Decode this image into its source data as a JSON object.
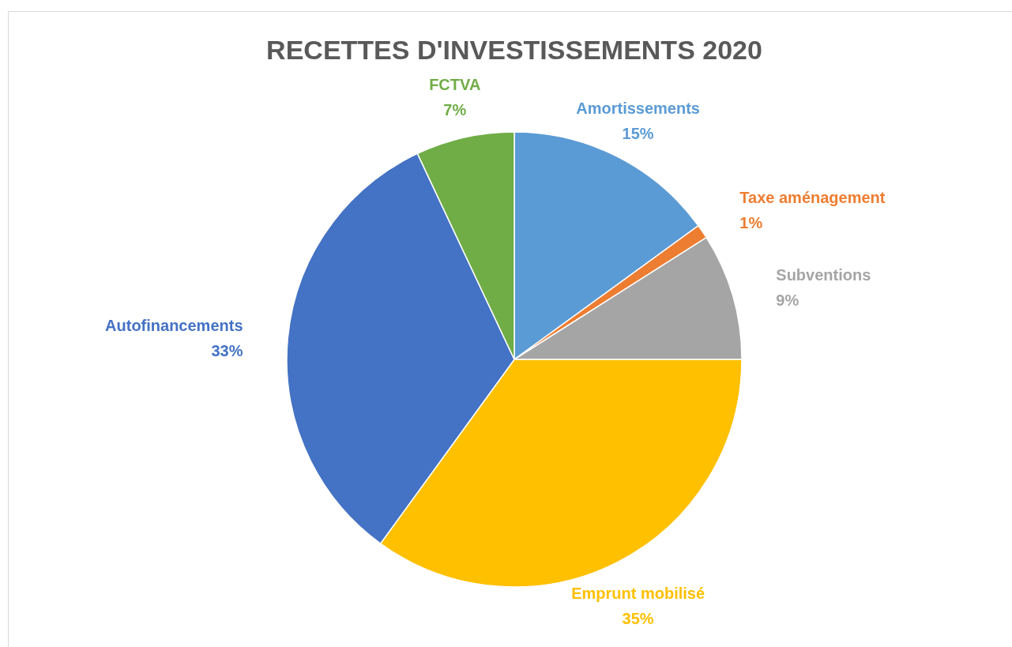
{
  "chart_data": {
    "type": "pie",
    "title": "RECETTES D'INVESTISSEMENTS 2020",
    "categories": [
      "Amortissements",
      "Taxe aménagement",
      "Subventions",
      "Emprunt mobilisé",
      "Autofinancements",
      "FCTVA"
    ],
    "values": [
      15,
      1,
      9,
      35,
      33,
      7
    ],
    "value_labels": [
      "15%",
      "1%",
      "9%",
      "35%",
      "33%",
      "7%"
    ],
    "colors": [
      "#5b9bd5",
      "#ed7d31",
      "#a5a5a5",
      "#ffc000",
      "#4472c4",
      "#70ad47"
    ]
  }
}
